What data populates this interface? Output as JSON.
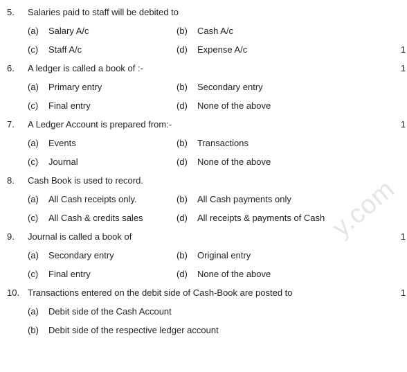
{
  "watermark": "y.com",
  "questions": [
    {
      "num": "5.",
      "text": "Salaries paid to staff will be debited to",
      "marks": "1",
      "marksOnQuestion": false,
      "options": [
        {
          "label": "(a)",
          "text": "Salary A/c"
        },
        {
          "label": "(b)",
          "text": "Cash A/c"
        },
        {
          "label": "(c)",
          "text": "Staff A/c"
        },
        {
          "label": "(d)",
          "text": "Expense A/c"
        }
      ]
    },
    {
      "num": "6.",
      "text": "A ledger is called a book of :-",
      "marks": "1",
      "marksOnQuestion": true,
      "options": [
        {
          "label": "(a)",
          "text": "Primary entry"
        },
        {
          "label": "(b)",
          "text": "Secondary entry"
        },
        {
          "label": "(c)",
          "text": "Final entry"
        },
        {
          "label": "(d)",
          "text": "None of the above"
        }
      ]
    },
    {
      "num": "7.",
      "text": "A  Ledger Account is prepared from:-",
      "marks": "1",
      "marksOnQuestion": true,
      "options": [
        {
          "label": "(a)",
          "text": "Events"
        },
        {
          "label": "(b)",
          "text": "Transactions"
        },
        {
          "label": "(c)",
          "text": "Journal"
        },
        {
          "label": "(d)",
          "text": "None of the above"
        }
      ]
    },
    {
      "num": "8.",
      "text": "Cash Book is used to record.",
      "marks": "",
      "marksOnQuestion": true,
      "options": [
        {
          "label": "(a)",
          "text": "All Cash receipts only."
        },
        {
          "label": "(b)",
          "text": "All Cash payments only"
        },
        {
          "label": "(c)",
          "text": "All Cash & credits sales"
        },
        {
          "label": "(d)",
          "text": "All receipts & payments of Cash"
        }
      ]
    },
    {
      "num": "9.",
      "text": "Journal is called a book of",
      "marks": "1",
      "marksOnQuestion": true,
      "options": [
        {
          "label": "(a)",
          "text": "Secondary entry"
        },
        {
          "label": "(b)",
          "text": "Original entry"
        },
        {
          "label": "(c)",
          "text": "Final entry"
        },
        {
          "label": "(d)",
          "text": "None of the above"
        }
      ]
    }
  ],
  "q10": {
    "num": "10.",
    "text": "Transactions entered on the debit side of Cash-Book are posted to",
    "marks": "1",
    "options": [
      {
        "label": "(a)",
        "text": "Debit side of the Cash Account"
      },
      {
        "label": "(b)",
        "text": "Debit side of the respective ledger account"
      }
    ]
  }
}
